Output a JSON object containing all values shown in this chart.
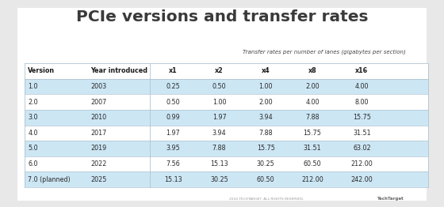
{
  "title": "PCIe versions and transfer rates",
  "subtitle": "Transfer rates per number of lanes (gigabytes per section)",
  "col_headers": [
    "Version",
    "Year introduced",
    "x1",
    "x2",
    "x4",
    "x8",
    "x16"
  ],
  "rows": [
    [
      "1.0",
      "2003",
      "0.25",
      "0.50",
      "1.00",
      "2.00",
      "4.00"
    ],
    [
      "2.0",
      "2007",
      "0.50",
      "1.00",
      "2.00",
      "4.00",
      "8.00"
    ],
    [
      "3.0",
      "2010",
      "0.99",
      "1.97",
      "3.94",
      "7.88",
      "15.75"
    ],
    [
      "4.0",
      "2017",
      "1.97",
      "3.94",
      "7.88",
      "15.75",
      "31.51"
    ],
    [
      "5.0",
      "2019",
      "3.95",
      "7.88",
      "15.75",
      "31.51",
      "63.02"
    ],
    [
      "6.0",
      "2022",
      "7.56",
      "15.13",
      "30.25",
      "60.50",
      "212.00"
    ],
    [
      "7.0 (planned)",
      "2025",
      "15.13",
      "30.25",
      "60.50",
      "212.00",
      "242.00"
    ]
  ],
  "shaded_rows": [
    0,
    2,
    4,
    6
  ],
  "row_shade_color": "#cce6f4",
  "bg_color": "#e8e8e8",
  "panel_color": "#ffffff",
  "title_color": "#3a3a3a",
  "subtitle_color": "#444444",
  "header_text_color": "#1a1a1a",
  "cell_text_color": "#2a2a2a",
  "border_color": "#b0c4d0",
  "footer_text": "2024 TECHTARGET. ALL RIGHTS RESERVED.",
  "footer_brand": "TechTarget"
}
